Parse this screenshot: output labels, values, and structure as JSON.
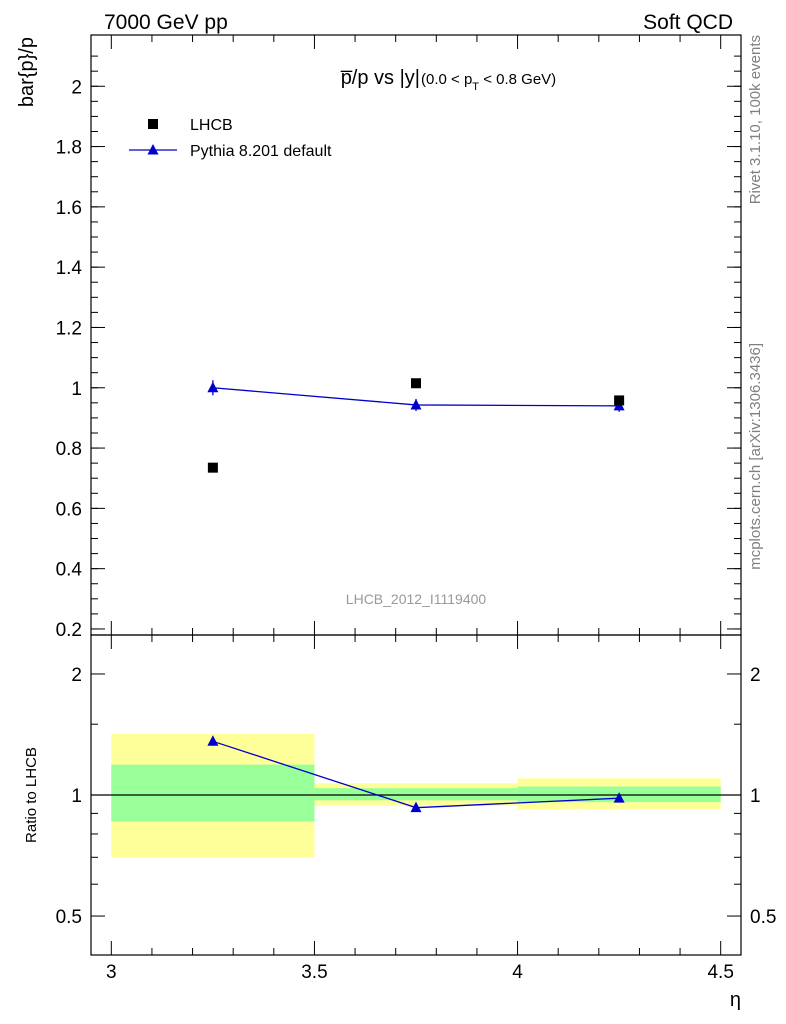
{
  "header": {
    "left": "7000 GeV pp",
    "right": "Soft QCD"
  },
  "side_labels": {
    "rivet": "Rivet 3.1.10,  100k events",
    "mcplots": "mcplots.cern.ch [arXiv:1306.3436]"
  },
  "chart_data": [
    {
      "type": "scatter",
      "panel": "main",
      "title_main": "p̅/p vs |y|",
      "title_sub": "(0.0 < p",
      "title_sub_T": "T",
      "title_sub_end": " < 0.8 GeV)",
      "ylabel": "bar{p}/p",
      "ylim": [
        0.18,
        2.17
      ],
      "yticks": [
        0.2,
        0.4,
        0.6,
        0.8,
        1,
        1.2,
        1.4,
        1.6,
        1.8,
        2
      ],
      "ytick_labels": [
        "0.2",
        "0.4",
        "0.6",
        "0.8",
        "1",
        "1.2",
        "1.4",
        "1.6",
        "1.8",
        "2"
      ],
      "xlim": [
        2.95,
        4.55
      ],
      "watermark": "LHCB_2012_I1119400",
      "legend_position": "top-left",
      "series": [
        {
          "name": "LHCB",
          "color": "#000000",
          "marker": "square",
          "x": [
            3.25,
            3.75,
            4.25
          ],
          "y": [
            0.735,
            1.015,
            0.958
          ],
          "yerr": [
            0.0,
            0.0,
            0.0
          ]
        },
        {
          "name": "Pythia 8.201 default",
          "color": "#0000cc",
          "marker": "triangle",
          "x": [
            3.25,
            3.75,
            4.25
          ],
          "y": [
            1.0,
            0.943,
            0.94
          ],
          "yerr": [
            0.025,
            0.02,
            0.02
          ]
        }
      ]
    },
    {
      "type": "line",
      "panel": "ratio",
      "ylabel": "Ratio to LHCB",
      "xlabel": "η",
      "log_y": true,
      "ylim": [
        0.4,
        2.5
      ],
      "yticks": [
        0.5,
        1,
        2
      ],
      "ytick_labels": [
        "0.5",
        "1",
        "2"
      ],
      "xlim": [
        2.95,
        4.55
      ],
      "xticks": [
        3,
        3.5,
        4,
        4.5
      ],
      "xtick_labels": [
        "3",
        "3.5",
        "4",
        "4.5"
      ],
      "bands": [
        {
          "x0": 3.0,
          "x1": 3.5,
          "yellow": [
            0.7,
            1.42
          ],
          "green": [
            0.86,
            1.19
          ]
        },
        {
          "x0": 3.5,
          "x1": 4.0,
          "yellow": [
            0.94,
            1.07
          ],
          "green": [
            0.97,
            1.04
          ]
        },
        {
          "x0": 4.0,
          "x1": 4.5,
          "yellow": [
            0.92,
            1.1
          ],
          "green": [
            0.96,
            1.05
          ]
        }
      ],
      "series": [
        {
          "name": "Pythia 8.201 default",
          "color": "#0000cc",
          "x": [
            3.25,
            3.75,
            4.25
          ],
          "y": [
            1.36,
            0.93,
            0.982
          ],
          "yerr": [
            0.03,
            0.0,
            0.0
          ]
        }
      ],
      "reference_line": 1
    }
  ]
}
